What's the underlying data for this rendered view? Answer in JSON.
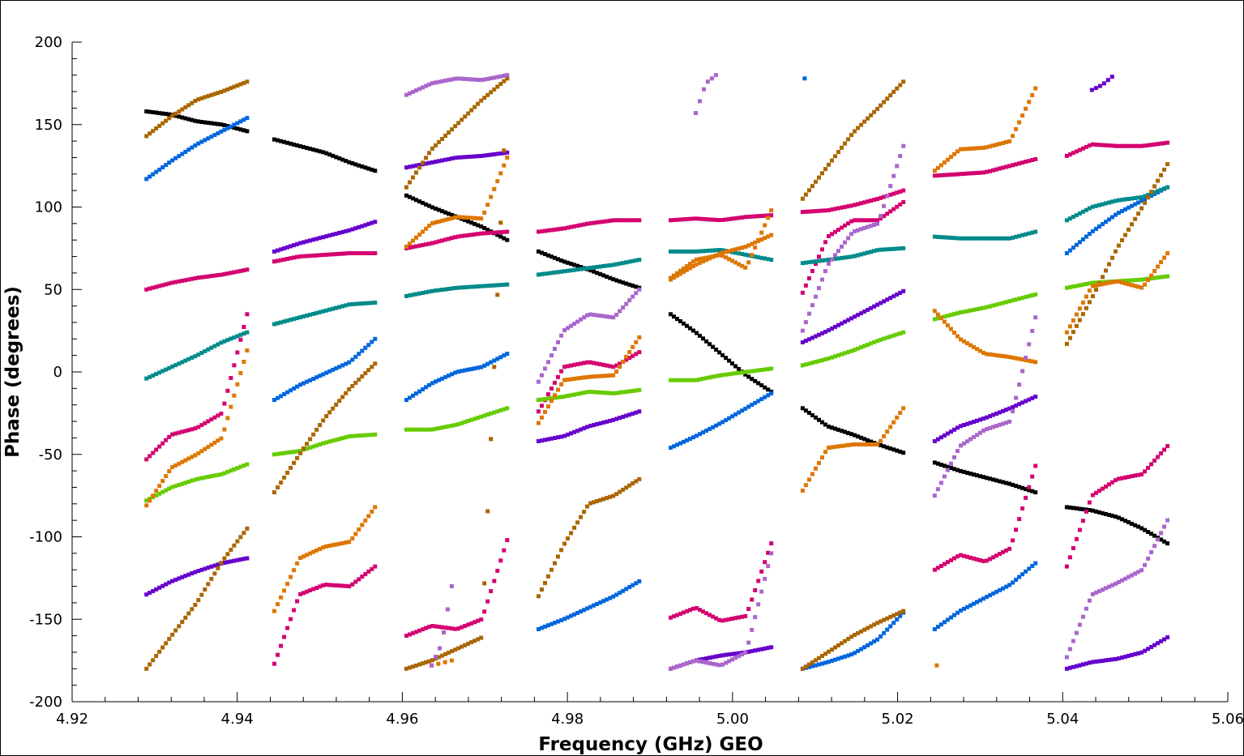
{
  "chart_data": {
    "type": "scatter",
    "title": "",
    "xlabel": "Frequency (GHz) GEO",
    "ylabel": "Phase (degrees)",
    "xlim": [
      4.92,
      5.06
    ],
    "ylim": [
      -200,
      200
    ],
    "x_ticks": [
      4.92,
      4.94,
      4.96,
      4.98,
      5.0,
      5.02,
      5.04,
      5.06
    ],
    "x_tick_labels": [
      "4.92",
      "4.94",
      "4.96",
      "4.98",
      "5.00",
      "5.02",
      "5.04",
      "5.06"
    ],
    "y_ticks": [
      200,
      150,
      100,
      50,
      0,
      -50,
      -100,
      -150,
      -200
    ],
    "y_tick_labels": [
      "200",
      "150",
      "100",
      "50",
      "0",
      "-50",
      "-100",
      "-150",
      "-200"
    ],
    "grid": false,
    "legend": "none",
    "spws": [
      [
        4.929,
        4.9412
      ],
      [
        4.9445,
        4.9567
      ],
      [
        4.9605,
        4.9727
      ],
      [
        4.9765,
        4.9887
      ],
      [
        4.9925,
        5.0047
      ],
      [
        5.0085,
        5.0207
      ],
      [
        5.0245,
        5.0367
      ],
      [
        5.0405,
        5.0527
      ]
    ],
    "series": [
      {
        "color": "#000000",
        "tracks": [
          {
            "spw": 0,
            "y": [
              158,
              156,
              152,
              150,
              146
            ]
          },
          {
            "spw": 1,
            "y": [
              141,
              137,
              133,
              127,
              122
            ]
          },
          {
            "spw": 2,
            "y": [
              107,
              100,
              94,
              88,
              80
            ]
          },
          {
            "spw": 3,
            "y": [
              73,
              67,
              62,
              56,
              51
            ]
          },
          {
            "spw": 4,
            "y": [
              35,
              24,
              11,
              -2,
              -12
            ]
          },
          {
            "spw": 5,
            "y": [
              -22,
              -33,
              -38,
              -44,
              -49
            ]
          },
          {
            "spw": 6,
            "y": [
              -55,
              -60,
              -64,
              -68,
              -73
            ]
          },
          {
            "spw": 7,
            "y": [
              -82,
              -84,
              -88,
              -95,
              -104
            ]
          }
        ]
      },
      {
        "color": "#0066dd",
        "tracks": [
          {
            "spw": 0,
            "y": [
              117,
              128,
              138,
              146,
              154
            ]
          },
          {
            "spw": 1,
            "y": [
              -17,
              -8,
              -1,
              6,
              20
            ]
          },
          {
            "spw": 2,
            "y": [
              -17,
              -7,
              0,
              3,
              11
            ]
          },
          {
            "spw": 3,
            "y": [
              -156,
              -150,
              -143,
              -136,
              -127
            ]
          },
          {
            "spw": 4,
            "y": [
              -46,
              -39,
              -31,
              -22,
              -13
            ]
          },
          {
            "spw": 5,
            "y": [
              -180,
              -176,
              -171,
              -162,
              -146
            ]
          },
          {
            "spw": 6,
            "y": [
              -156,
              -145,
              -137,
              -129,
              -116
            ]
          },
          {
            "spw": 7,
            "y": [
              72,
              85,
              96,
              104,
              112
            ]
          }
        ]
      },
      {
        "color": "#d40070",
        "tracks": [
          {
            "spw": 0,
            "y": [
              50,
              54,
              57,
              59,
              62
            ]
          },
          {
            "spw": 0,
            "y": [
              -53,
              -38,
              -34,
              -25,
              35
            ]
          },
          {
            "spw": 1,
            "y": [
              67,
              70,
              71,
              72,
              72
            ]
          },
          {
            "spw": 1,
            "y": [
              -177,
              -135,
              -129,
              -130,
              -118
            ]
          },
          {
            "spw": 2,
            "y": [
              75,
              78,
              82,
              84,
              85
            ]
          },
          {
            "spw": 2,
            "y": [
              -160,
              -154,
              -156,
              -150,
              -102
            ]
          },
          {
            "spw": 3,
            "y": [
              85,
              87,
              90,
              92,
              92
            ]
          },
          {
            "spw": 3,
            "y": [
              -24,
              3,
              6,
              3,
              12
            ]
          },
          {
            "spw": 4,
            "y": [
              92,
              93,
              92,
              94,
              95
            ]
          },
          {
            "spw": 4,
            "y": [
              -149,
              -143,
              -151,
              -148,
              -104
            ]
          },
          {
            "spw": 5,
            "y": [
              97,
              98,
              101,
              105,
              110
            ]
          },
          {
            "spw": 5,
            "y": [
              48,
              82,
              92,
              92,
              103
            ]
          },
          {
            "spw": 6,
            "y": [
              119,
              120,
              121,
              125,
              129
            ]
          },
          {
            "spw": 6,
            "y": [
              -120,
              -111,
              -115,
              -107,
              -57
            ]
          },
          {
            "spw": 7,
            "y": [
              131,
              138,
              137,
              137,
              139
            ]
          },
          {
            "spw": 7,
            "y": [
              -118,
              -75,
              -65,
              -62,
              -45
            ]
          }
        ]
      },
      {
        "color": "#008b8b",
        "tracks": [
          {
            "spw": 0,
            "y": [
              -4,
              3,
              10,
              18,
              24
            ]
          },
          {
            "spw": 1,
            "y": [
              29,
              33,
              37,
              41,
              42
            ]
          },
          {
            "spw": 2,
            "y": [
              46,
              49,
              51,
              52,
              53
            ]
          },
          {
            "spw": 3,
            "y": [
              59,
              61,
              63,
              65,
              68
            ]
          },
          {
            "spw": 4,
            "y": [
              73,
              73,
              74,
              71,
              68
            ]
          },
          {
            "spw": 5,
            "y": [
              66,
              68,
              70,
              74,
              75
            ]
          },
          {
            "spw": 6,
            "y": [
              82,
              81,
              81,
              81,
              85
            ]
          },
          {
            "spw": 7,
            "y": [
              92,
              100,
              104,
              106,
              112
            ]
          }
        ]
      },
      {
        "color": "#66cc00",
        "tracks": [
          {
            "spw": 0,
            "y": [
              -78,
              -70,
              -65,
              -62,
              -56
            ]
          },
          {
            "spw": 1,
            "y": [
              -50,
              -48,
              -43,
              -39,
              -38
            ]
          },
          {
            "spw": 2,
            "y": [
              -35,
              -35,
              -32,
              -27,
              -22
            ]
          },
          {
            "spw": 3,
            "y": [
              -17,
              -15,
              -12,
              -13,
              -11
            ]
          },
          {
            "spw": 4,
            "y": [
              -5,
              -5,
              -2,
              0,
              2
            ]
          },
          {
            "spw": 5,
            "y": [
              4,
              8,
              13,
              19,
              24
            ]
          },
          {
            "spw": 6,
            "y": [
              32,
              36,
              39,
              43,
              47
            ]
          },
          {
            "spw": 7,
            "y": [
              51,
              54,
              55,
              56,
              58
            ]
          }
        ]
      },
      {
        "color": "#6600cc",
        "tracks": [
          {
            "spw": 0,
            "y": [
              -135,
              -127,
              -121,
              -116,
              -113
            ]
          },
          {
            "spw": 1,
            "y": [
              73,
              78,
              82,
              86,
              91
            ]
          },
          {
            "spw": 2,
            "y": [
              124,
              127,
              130,
              131,
              133
            ]
          },
          {
            "spw": 3,
            "y": [
              -42,
              -39,
              -33,
              -29,
              -24
            ]
          },
          {
            "spw": 4,
            "y": [
              -180,
              -175,
              -172,
              -170,
              -167
            ]
          },
          {
            "spw": 5,
            "y": [
              18,
              25,
              33,
              41,
              49
            ]
          },
          {
            "spw": 6,
            "y": [
              -42,
              -33,
              -28,
              -22,
              -15
            ]
          },
          {
            "spw": 7,
            "y": [
              -180,
              -176,
              -174,
              -170,
              -161
            ]
          }
        ]
      },
      {
        "color": "#aa6600",
        "tracks": [
          {
            "spw": 0,
            "y": [
              143,
              155,
              165,
              170,
              176
            ]
          },
          {
            "spw": 0,
            "y": [
              -180,
              -160,
              -140,
              -115,
              -95
            ]
          },
          {
            "spw": 1,
            "y": [
              -73,
              -50,
              -28,
              -10,
              5
            ]
          },
          {
            "spw": 2,
            "y": [
              -180,
              -175,
              -168,
              -161,
              178
            ]
          },
          {
            "spw": 2,
            "y": [
              112,
              135,
              150,
              165,
              178
            ]
          },
          {
            "spw": 3,
            "y": [
              -136,
              -105,
              -80,
              -75,
              -65
            ]
          },
          {
            "spw": 5,
            "y": [
              105,
              125,
              145,
              160,
              176
            ]
          },
          {
            "spw": 5,
            "y": [
              -180,
              -170,
              -160,
              -152,
              -145
            ]
          },
          {
            "spw": 7,
            "y": [
              17,
              45,
              75,
              100,
              126
            ]
          }
        ]
      },
      {
        "color": "#dd7700",
        "tracks": [
          {
            "spw": 0,
            "y": [
              -81,
              -58,
              -50,
              -40,
              13
            ]
          },
          {
            "spw": 1,
            "y": [
              -145,
              -113,
              -106,
              -103,
              -82
            ]
          },
          {
            "spw": 2,
            "y": [
              76,
              90,
              94,
              93,
              130
            ]
          },
          {
            "spw": 2,
            "y": [
              -178,
              -175
            ]
          },
          {
            "spw": 3,
            "y": [
              -31,
              -5,
              -3,
              -2,
              21
            ]
          },
          {
            "spw": 4,
            "y": [
              57,
              68,
              71,
              63,
              98
            ]
          },
          {
            "spw": 4,
            "y": [
              56,
              65,
              72,
              76,
              83
            ]
          },
          {
            "spw": 5,
            "y": [
              -72,
              -46,
              -44,
              -44,
              -22
            ]
          },
          {
            "spw": 6,
            "y": [
              37,
              20,
              11,
              9,
              6
            ]
          },
          {
            "spw": 6,
            "y": [
              122,
              135,
              136,
              140,
              172
            ]
          },
          {
            "spw": 6,
            "y": [
              -178
            ]
          },
          {
            "spw": 7,
            "y": [
              24,
              52,
              55,
              51,
              72
            ]
          }
        ]
      },
      {
        "color": "#aa66cc",
        "tracks": [
          {
            "spw": 2,
            "y": [
              168,
              175,
              178,
              177,
              180
            ]
          },
          {
            "spw": 2,
            "y": [
              -178,
              -165,
              -130
            ]
          },
          {
            "spw": 3,
            "y": [
              -6,
              25,
              35,
              33,
              50
            ]
          },
          {
            "spw": 4,
            "y": [
              157,
              175,
              180
            ]
          },
          {
            "spw": 4,
            "y": [
              -180,
              -175,
              -178,
              -170,
              -110
            ]
          },
          {
            "spw": 5,
            "y": [
              25,
              65,
              85,
              90,
              137
            ]
          },
          {
            "spw": 6,
            "y": [
              -75,
              -45,
              -35,
              -30,
              33
            ]
          },
          {
            "spw": 7,
            "y": [
              -173,
              -135,
              -128,
              -120,
              -90
            ]
          }
        ]
      },
      {
        "color": "#0066dd",
        "tracks": [
          {
            "spw": 5,
            "y": [
              178
            ]
          }
        ]
      },
      {
        "color": "#6600cc",
        "tracks": [
          {
            "spw": 7,
            "y": [
              171,
              174,
              179
            ]
          }
        ]
      }
    ]
  }
}
